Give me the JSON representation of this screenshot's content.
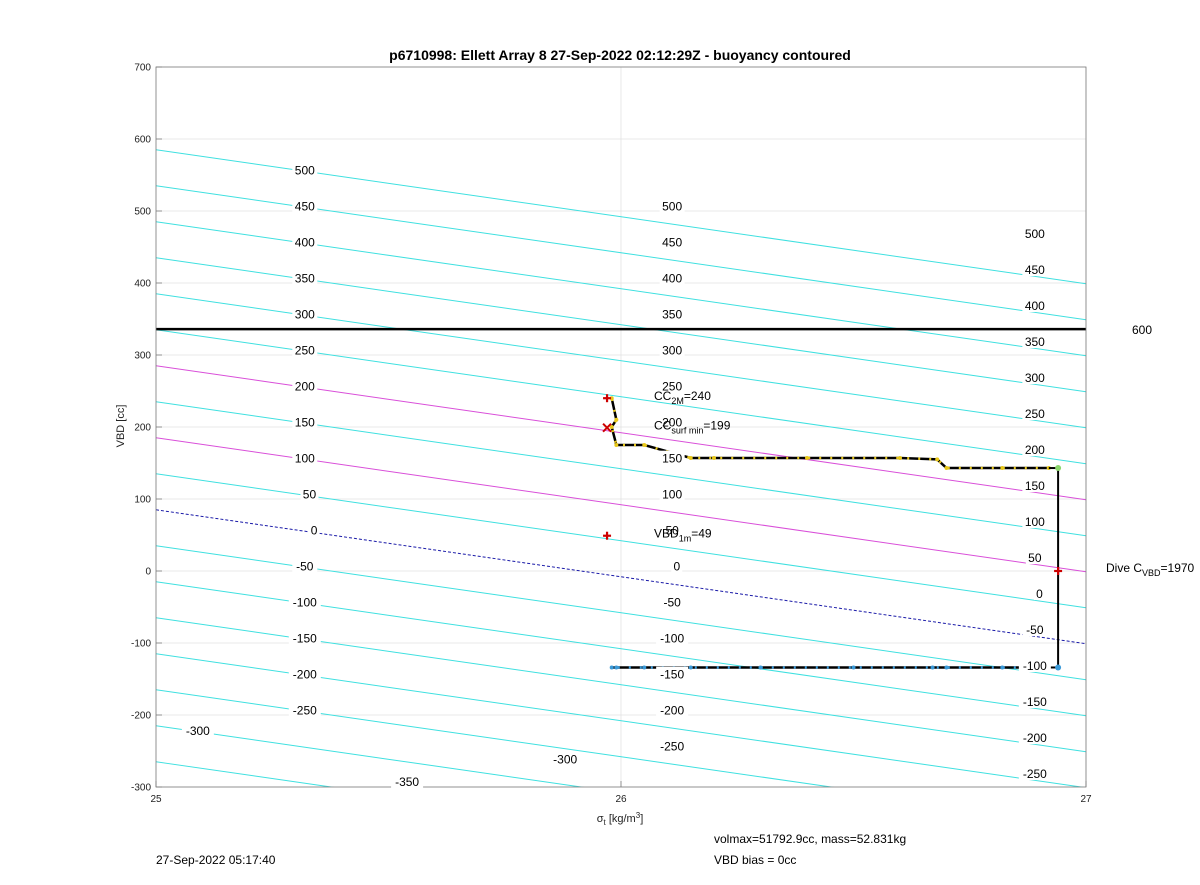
{
  "chart_data": {
    "type": "line",
    "title": "p6710998: Ellett Array 8 27-Sep-2022 02:12:29Z - buoyancy contoured",
    "xlabel": "σ_t [kg/m³]",
    "xlabel_parts": {
      "sigma": "σ",
      "sub": "t",
      "unit_pre": "[kg/m",
      "unit_sup": "3",
      "unit_post": "]"
    },
    "ylabel": "VBD [cc]",
    "xlim": [
      25,
      27
    ],
    "ylim": [
      -300,
      700
    ],
    "x_ticks": [
      "25",
      "26",
      "27"
    ],
    "y_ticks": [
      "-300",
      "-200",
      "-100",
      "0",
      "100",
      "200",
      "300",
      "400",
      "500",
      "600",
      "700"
    ],
    "grid": true,
    "buoyancy_contours": {
      "slope_cc_per_sigma": -93,
      "levels": [
        -350,
        -300,
        -250,
        -200,
        -150,
        -100,
        -50,
        0,
        50,
        100,
        150,
        200,
        250,
        300,
        350,
        400,
        450,
        500
      ],
      "zero_contour_vbd_at_sigma25": 85,
      "highlight_levels": [
        100,
        200
      ],
      "labels": [
        {
          "text": "500",
          "x": 25.32,
          "y": 556
        },
        {
          "text": "450",
          "x": 25.32,
          "y": 506
        },
        {
          "text": "400",
          "x": 25.32,
          "y": 456
        },
        {
          "text": "350",
          "x": 25.32,
          "y": 406
        },
        {
          "text": "300",
          "x": 25.32,
          "y": 356
        },
        {
          "text": "250",
          "x": 25.32,
          "y": 306
        },
        {
          "text": "200",
          "x": 25.32,
          "y": 256
        },
        {
          "text": "150",
          "x": 25.32,
          "y": 206
        },
        {
          "text": "100",
          "x": 25.32,
          "y": 156
        },
        {
          "text": "50",
          "x": 25.33,
          "y": 106
        },
        {
          "text": "0",
          "x": 25.34,
          "y": 56
        },
        {
          "text": "-50",
          "x": 25.32,
          "y": 6
        },
        {
          "text": "-100",
          "x": 25.32,
          "y": -44
        },
        {
          "text": "-150",
          "x": 25.32,
          "y": -94
        },
        {
          "text": "-200",
          "x": 25.32,
          "y": -144
        },
        {
          "text": "-250",
          "x": 25.32,
          "y": -194
        },
        {
          "text": "-300",
          "x": 25.09,
          "y": -222
        },
        {
          "text": "-350",
          "x": 25.54,
          "y": -293
        },
        {
          "text": "500",
          "x": 26.11,
          "y": 506
        },
        {
          "text": "450",
          "x": 26.11,
          "y": 456
        },
        {
          "text": "400",
          "x": 26.11,
          "y": 406
        },
        {
          "text": "350",
          "x": 26.11,
          "y": 356
        },
        {
          "text": "300",
          "x": 26.11,
          "y": 306
        },
        {
          "text": "250",
          "x": 26.11,
          "y": 256
        },
        {
          "text": "200",
          "x": 26.11,
          "y": 206
        },
        {
          "text": "150",
          "x": 26.11,
          "y": 156
        },
        {
          "text": "100",
          "x": 26.11,
          "y": 106
        },
        {
          "text": "50",
          "x": 26.11,
          "y": 56
        },
        {
          "text": "0",
          "x": 26.12,
          "y": 6
        },
        {
          "text": "-50",
          "x": 26.11,
          "y": -44
        },
        {
          "text": "-100",
          "x": 26.11,
          "y": -94
        },
        {
          "text": "-150",
          "x": 26.11,
          "y": -144
        },
        {
          "text": "-200",
          "x": 26.11,
          "y": -194
        },
        {
          "text": "-250",
          "x": 26.11,
          "y": -244
        },
        {
          "text": "-300",
          "x": 25.88,
          "y": -262
        },
        {
          "text": "500",
          "x": 26.89,
          "y": 468
        },
        {
          "text": "450",
          "x": 26.89,
          "y": 418
        },
        {
          "text": "400",
          "x": 26.89,
          "y": 368
        },
        {
          "text": "350",
          "x": 26.89,
          "y": 318
        },
        {
          "text": "300",
          "x": 26.89,
          "y": 268
        },
        {
          "text": "250",
          "x": 26.89,
          "y": 218
        },
        {
          "text": "200",
          "x": 26.89,
          "y": 168
        },
        {
          "text": "150",
          "x": 26.89,
          "y": 118
        },
        {
          "text": "100",
          "x": 26.89,
          "y": 68
        },
        {
          "text": "50",
          "x": 26.89,
          "y": 18
        },
        {
          "text": "0",
          "x": 26.9,
          "y": -32
        },
        {
          "text": "-50",
          "x": 26.89,
          "y": -82
        },
        {
          "text": "-100",
          "x": 26.89,
          "y": -132
        },
        {
          "text": "-150",
          "x": 26.89,
          "y": -182
        },
        {
          "text": "-200",
          "x": 26.89,
          "y": -232
        },
        {
          "text": "-250",
          "x": 26.89,
          "y": -282
        }
      ]
    },
    "vbd_max_line": {
      "y": 336,
      "label": "600"
    },
    "series": [
      {
        "name": "dive",
        "x": [
          26.92,
          26.82,
          26.7,
          26.67,
          26.5,
          26.3,
          26.15,
          26.05,
          25.99,
          25.98
        ],
        "y": [
          -134,
          -134,
          -134,
          -134,
          -134,
          -134,
          -134,
          -134,
          -134,
          -134
        ]
      },
      {
        "name": "climb",
        "x": [
          26.92,
          26.82,
          26.7,
          26.68,
          26.6,
          26.4,
          26.2,
          26.15,
          26.05,
          25.99,
          25.98,
          25.99,
          25.98
        ],
        "y": [
          143,
          143,
          143,
          155,
          157,
          157,
          157,
          157,
          175,
          175,
          200,
          210,
          240
        ]
      }
    ],
    "vertical_transition": {
      "x": 26.94,
      "y_from": 143,
      "y_to": -134
    },
    "markers": [
      {
        "type": "plus",
        "color": "#cc0000",
        "x": 25.97,
        "y": 240
      },
      {
        "type": "cross",
        "color": "#cc0000",
        "x": 25.97,
        "y": 199
      },
      {
        "type": "plus",
        "color": "#cc0000",
        "x": 25.97,
        "y": 49
      },
      {
        "type": "plus",
        "color": "#cc0000",
        "x": 26.94,
        "y": 0
      }
    ],
    "annotations": {
      "cc_2m": {
        "pre": "CC",
        "sub": "2M",
        "post": "=240",
        "x": 26.07,
        "y": 240
      },
      "cc_surf": {
        "pre": "CC",
        "sub": "surf min",
        "post": "=199",
        "x": 26.07,
        "y": 199
      },
      "vbd_1m": {
        "pre": "VBD",
        "sub": "1m",
        "post": "=49",
        "x": 26.07,
        "y": 49
      },
      "dive_c": {
        "pre": "Dive C",
        "sub": "VBD",
        "post": "=1970"
      }
    },
    "colors": {
      "contour": "#3fe0e0",
      "highlight": "#d94fd9",
      "zero": "#1a1aa8",
      "grid": "#e2e2e2",
      "vbdmax": "#000000",
      "dive_dots": "#3a9ad9",
      "climb_dots": "#e8c81a",
      "marker": "#cc0000"
    }
  },
  "footer": {
    "timestamp": "27-Sep-2022 05:17:40",
    "vol_mass": "volmax=51792.9cc, mass=52.831kg",
    "vbd_bias": "VBD bias = 0cc"
  }
}
